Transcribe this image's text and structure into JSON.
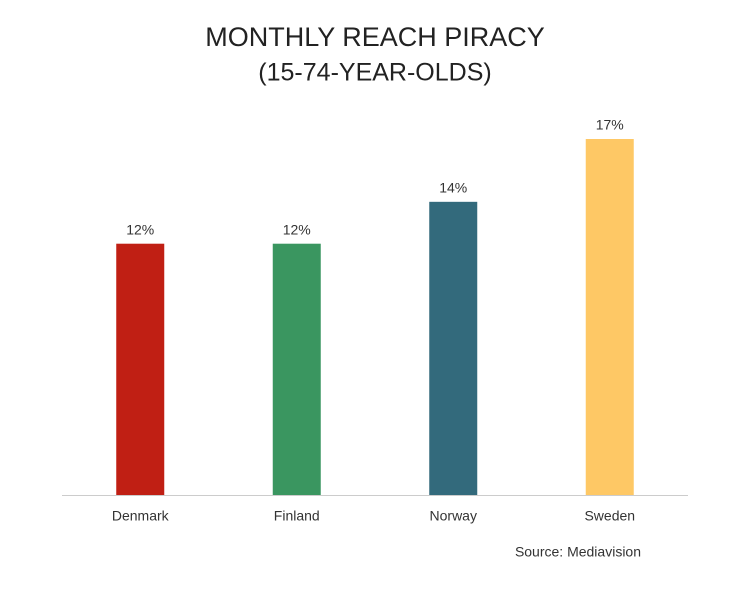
{
  "chart_data": {
    "type": "bar",
    "title": "MONTHLY REACH PIRACY",
    "subtitle": "(15-74-YEAR-OLDS)",
    "categories": [
      "Denmark",
      "Finland",
      "Norway",
      "Sweden"
    ],
    "values": [
      12,
      12,
      14,
      17
    ],
    "value_labels": [
      "12%",
      "12%",
      "14%",
      "17%"
    ],
    "colors": [
      "#c01f14",
      "#3a9660",
      "#336a7c",
      "#fec865"
    ],
    "ylim": [
      0,
      17
    ],
    "source": "Source: Mediavision"
  }
}
